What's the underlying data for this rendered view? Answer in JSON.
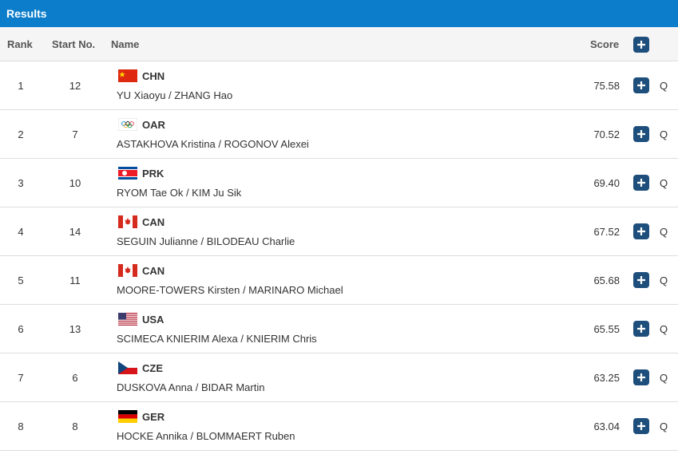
{
  "header": {
    "title": "Results"
  },
  "columns": {
    "rank": "Rank",
    "start": "Start No.",
    "name": "Name",
    "score": "Score"
  },
  "rows": [
    {
      "rank": "1",
      "start": "12",
      "noc": "CHN",
      "name": "YU Xiaoyu / ZHANG Hao",
      "score": "75.58",
      "status": "Q"
    },
    {
      "rank": "2",
      "start": "7",
      "noc": "OAR",
      "name": "ASTAKHOVA Kristina / ROGONOV Alexei",
      "score": "70.52",
      "status": "Q"
    },
    {
      "rank": "3",
      "start": "10",
      "noc": "PRK",
      "name": "RYOM Tae Ok / KIM Ju Sik",
      "score": "69.40",
      "status": "Q"
    },
    {
      "rank": "4",
      "start": "14",
      "noc": "CAN",
      "name": "SEGUIN Julianne / BILODEAU Charlie",
      "score": "67.52",
      "status": "Q"
    },
    {
      "rank": "5",
      "start": "11",
      "noc": "CAN",
      "name": "MOORE-TOWERS Kirsten / MARINARO Michael",
      "score": "65.68",
      "status": "Q"
    },
    {
      "rank": "6",
      "start": "13",
      "noc": "USA",
      "name": "SCIMECA KNIERIM Alexa / KNIERIM Chris",
      "score": "65.55",
      "status": "Q"
    },
    {
      "rank": "7",
      "start": "6",
      "noc": "CZE",
      "name": "DUSKOVA Anna / BIDAR Martin",
      "score": "63.25",
      "status": "Q"
    },
    {
      "rank": "8",
      "start": "8",
      "noc": "GER",
      "name": "HOCKE Annika / BLOMMAERT Ruben",
      "score": "63.04",
      "status": "Q"
    }
  ]
}
